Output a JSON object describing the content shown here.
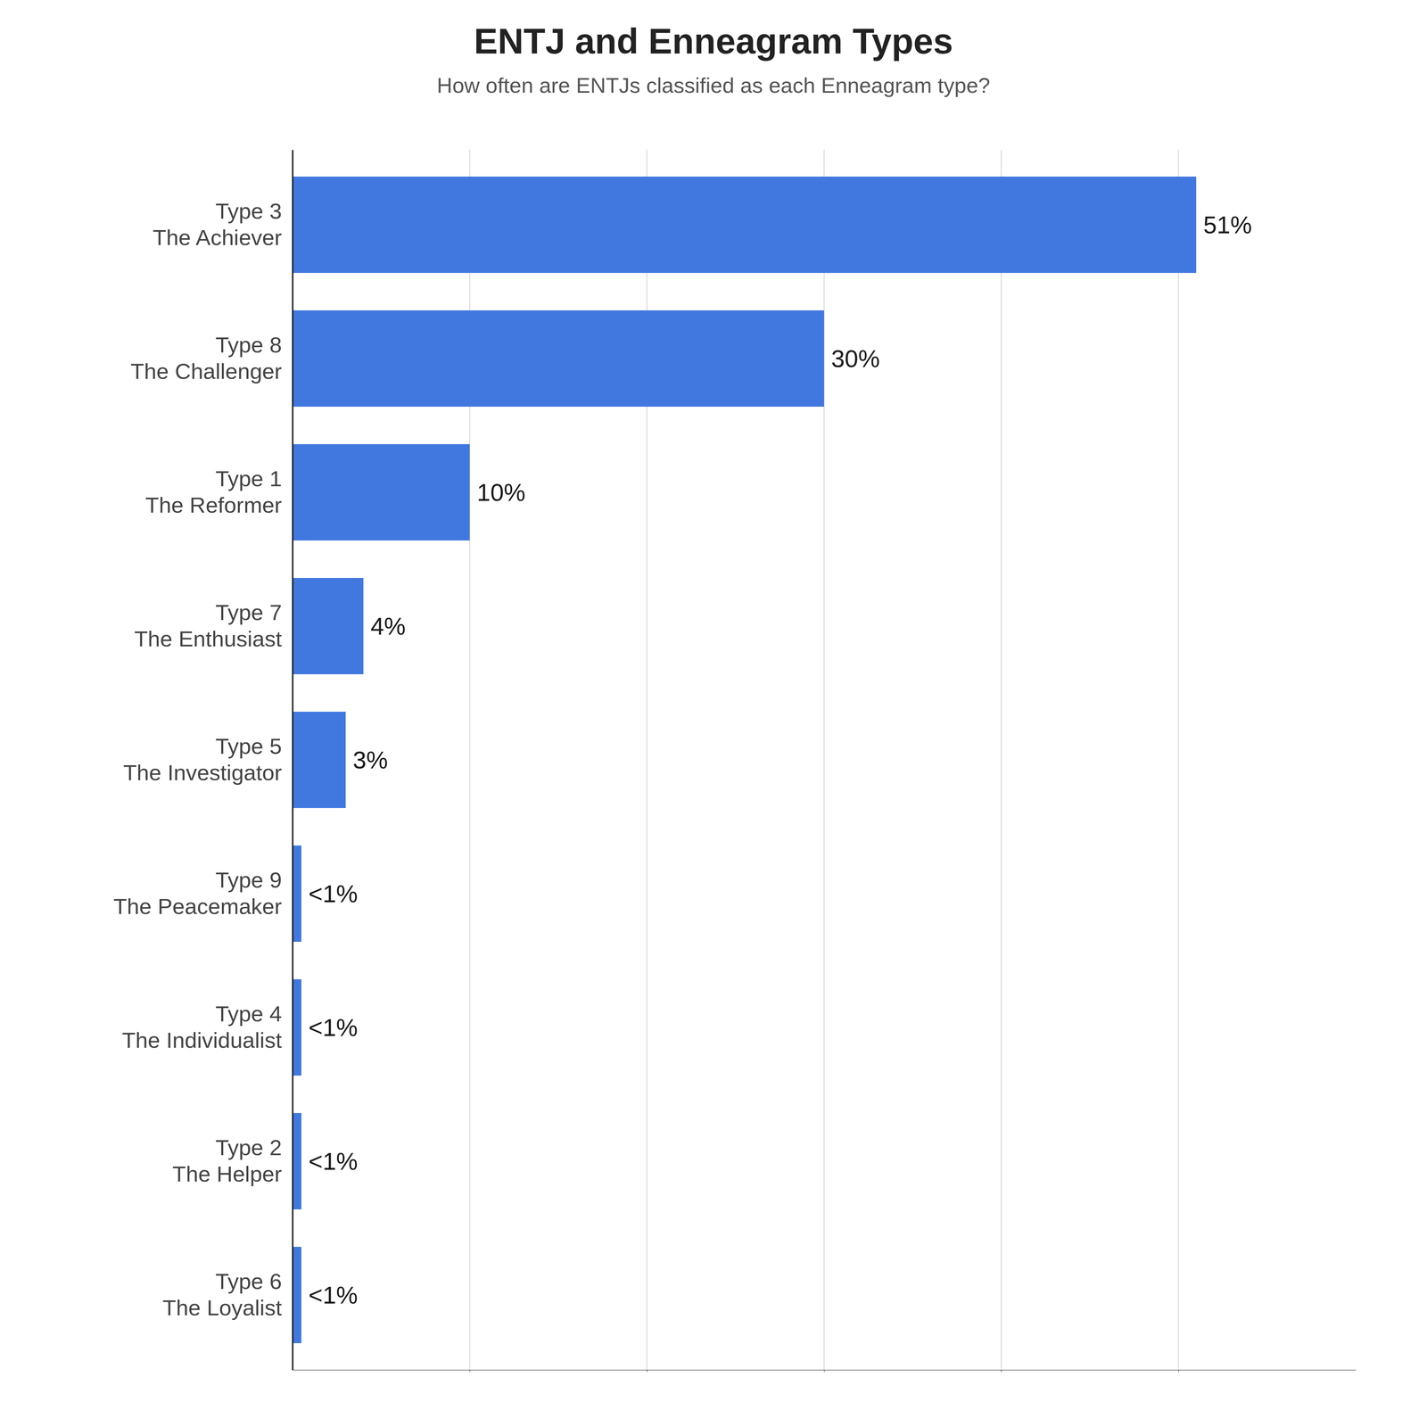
{
  "chart_data": {
    "type": "bar",
    "orientation": "horizontal",
    "title": "ENTJ and Enneagram Types",
    "subtitle": "How often are ENTJs classified as each Enneagram type?",
    "categories": [
      "Type 3\nThe Achiever",
      "Type 8\nThe Challenger",
      "Type 1\nThe Reformer",
      "Type 7\nThe Enthusiast",
      "Type 5\nThe Investigator",
      "Type 9\nThe Peacemaker",
      "Type 4\nThe Individualist",
      "Type 2\nThe Helper",
      "Type 6\nThe Loyalist"
    ],
    "values": [
      51,
      30,
      10,
      4,
      3,
      0.5,
      0.5,
      0.5,
      0.5
    ],
    "value_labels": [
      "51%",
      "30%",
      "10%",
      "4%",
      "3%",
      "<1%",
      "<1%",
      "<1%",
      "<1%"
    ],
    "data_labels": true,
    "color": "#4178e0",
    "xlim": [
      0,
      60
    ],
    "xticks": [
      10,
      20,
      30,
      40,
      50
    ],
    "grid": true,
    "tick_labels": "y"
  }
}
